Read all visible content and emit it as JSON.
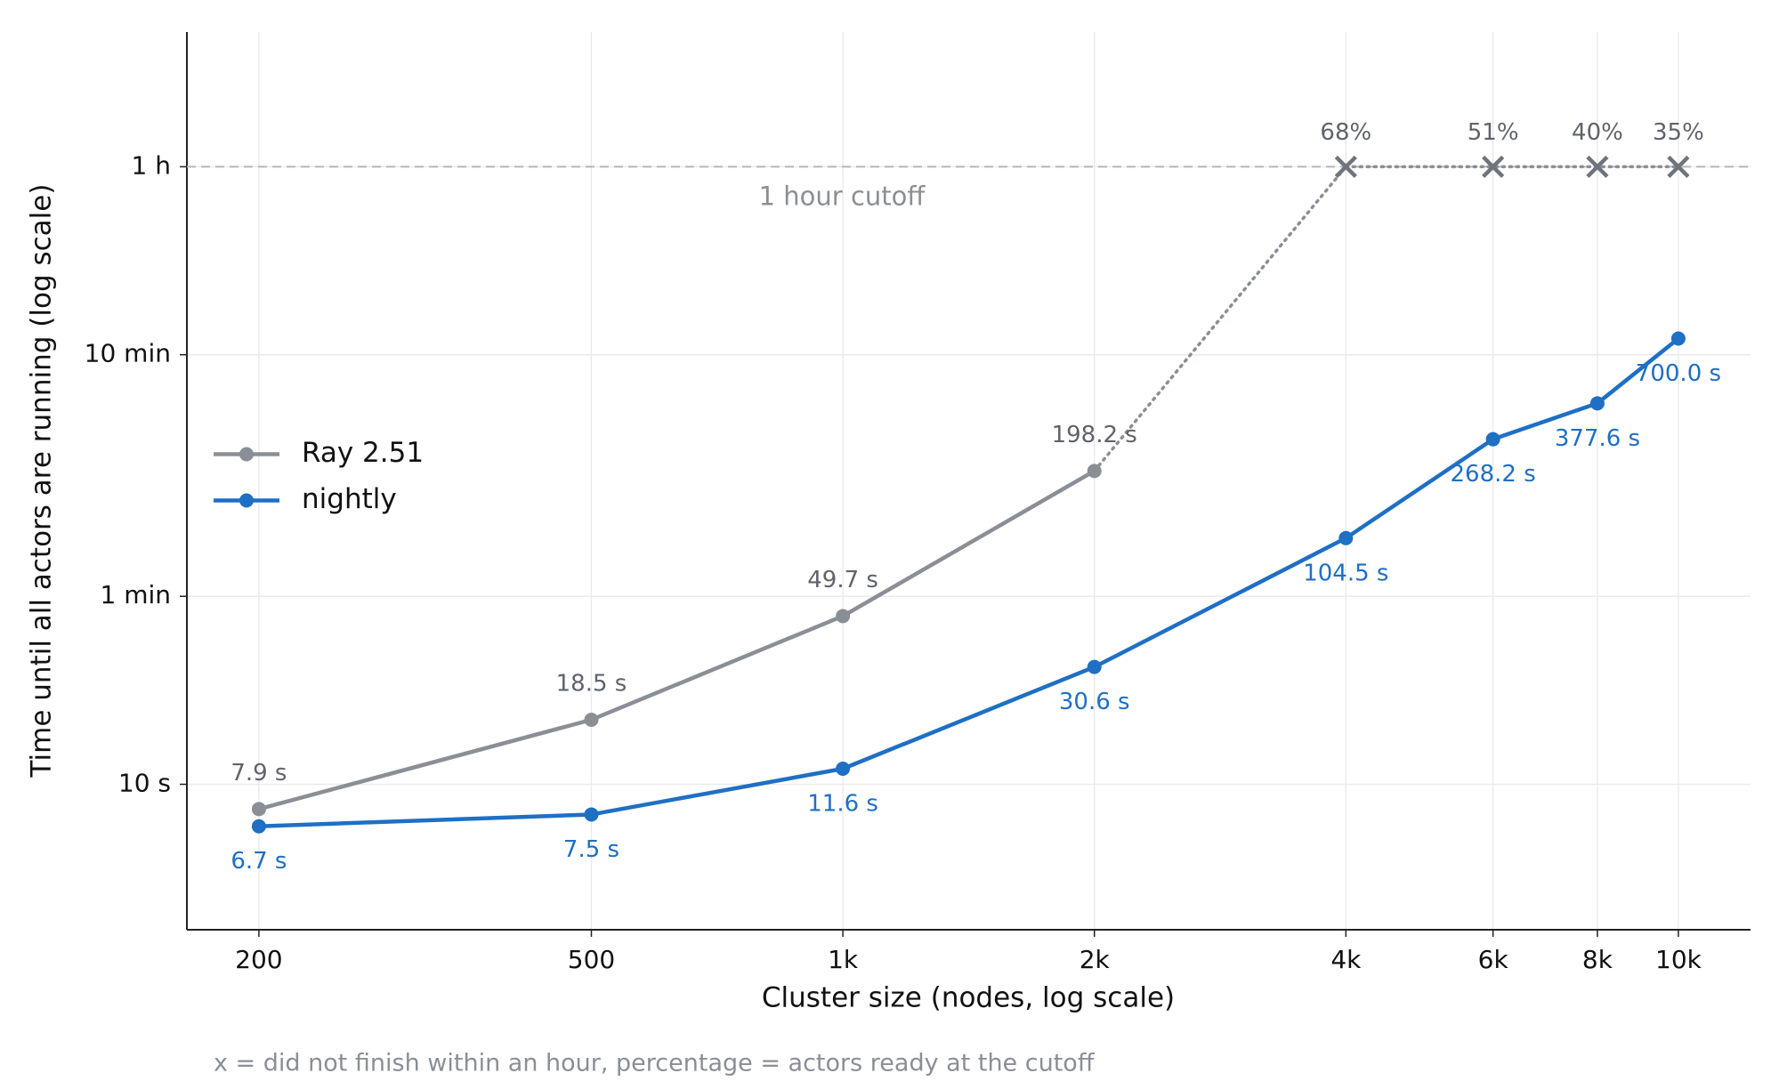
{
  "chart_data": {
    "type": "line",
    "x_label": "Cluster size (nodes, log scale)",
    "y_label": "Time until all actors are running (log scale)",
    "footnote": "x = did not finish within an hour, percentage = actors ready at the cutoff",
    "x": [
      200,
      500,
      1000,
      2000,
      4000,
      6000,
      8000,
      10000
    ],
    "xscale": "log",
    "yscale": "log",
    "xlim": [
      164,
      12200
    ],
    "ylim": [
      2.5,
      13000
    ],
    "xticks": [
      200,
      500,
      {
        "value": 1000,
        "label": "1k"
      },
      {
        "value": 2000,
        "label": "2k"
      },
      {
        "value": 4000,
        "label": "4k"
      },
      {
        "value": 6000,
        "label": "6k"
      },
      {
        "value": 8000,
        "label": "8k"
      },
      {
        "value": 10000,
        "label": "10k"
      }
    ],
    "yticks": [
      {
        "value": 10,
        "label": "10 s"
      },
      {
        "value": 60,
        "label": "1 min"
      },
      {
        "value": 600,
        "label": "10 min"
      },
      {
        "value": 3600,
        "label": "1 h"
      }
    ],
    "grid": true,
    "legend": "center left",
    "series": [
      {
        "name": "Ray 2.51",
        "color": "#8a8f96",
        "label_color": "#5f646b",
        "values": [
          7.9,
          18.5,
          49.7,
          198.2,
          null,
          null,
          null,
          null
        ],
        "value_labels": [
          "7.9 s",
          "18.5 s",
          "49.7 s",
          "198.2 s",
          null,
          null,
          null,
          null
        ]
      },
      {
        "name": "nightly",
        "color": "#1f6fc5",
        "label_color": "#1f6fc5",
        "values": [
          6.7,
          7.5,
          11.6,
          30.6,
          104.5,
          268.2,
          377.6,
          700.0
        ],
        "value_labels": [
          "6.7 s",
          "7.5 s",
          "11.6 s",
          "30.6 s",
          "104.5 s",
          "268.2 s",
          "377.6 s",
          "700.0 s"
        ]
      }
    ],
    "cutoff": {
      "value": 3600,
      "label": "1 hour cutoff"
    },
    "did_not_finish": {
      "x": [
        4000,
        6000,
        8000,
        10000
      ],
      "percent_ready": [
        68,
        51,
        40,
        35
      ],
      "value_labels": [
        "68%",
        "51%",
        "40%",
        "35%"
      ]
    }
  }
}
